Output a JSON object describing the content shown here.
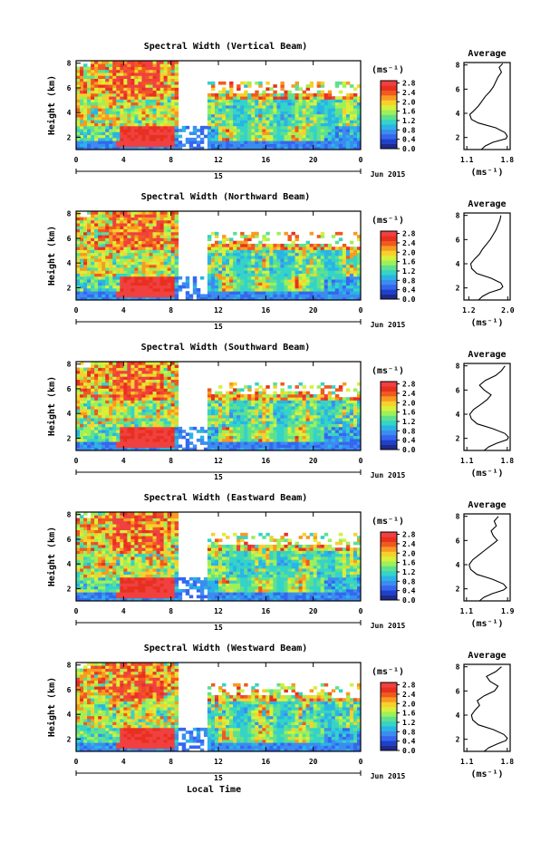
{
  "figure": {
    "xlabel": "Local Time",
    "date_label": "Jun 2015",
    "day_label": "15",
    "units_label": "(ms⁻¹)",
    "average_title": "Average",
    "ylabel": "Height (km)"
  },
  "colors": {
    "colormap": [
      "#1f2a8c",
      "#2040c8",
      "#3566f0",
      "#3c8cf0",
      "#2ab4e6",
      "#35d3c8",
      "#5fe08e",
      "#9cf05a",
      "#d8f03a",
      "#f8d02c",
      "#f89a22",
      "#f05a1e",
      "#e83020",
      "#f04040"
    ]
  },
  "chart_data": [
    {
      "type": "heatmap",
      "title": "Spectral Width (Vertical Beam)",
      "ylabel": "Height (km)",
      "xlabel": "",
      "x_ticks": [
        "0",
        "4",
        "8",
        "12",
        "16",
        "20",
        "0"
      ],
      "y_ticks": [
        "2",
        "4",
        "6",
        "8"
      ],
      "xlim": [
        0,
        24
      ],
      "ylim": [
        1,
        8.2
      ],
      "colorbar": {
        "ticks": [
          "0.0",
          "0.4",
          "0.8",
          "1.2",
          "1.6",
          "2.0",
          "2.4",
          "2.8"
        ],
        "range": [
          0.0,
          2.9
        ]
      },
      "average": {
        "title": "Average",
        "xlabel": "(ms⁻¹)",
        "x_ticks": [
          "1.1",
          "1.8"
        ],
        "xlim": [
          1.05,
          1.85
        ],
        "y_ticks": [
          "2",
          "4",
          "6",
          "8"
        ],
        "profile": [
          [
            1.35,
            1.0
          ],
          [
            1.42,
            1.3
          ],
          [
            1.55,
            1.6
          ],
          [
            1.78,
            1.9
          ],
          [
            1.8,
            2.1
          ],
          [
            1.76,
            2.4
          ],
          [
            1.6,
            2.8
          ],
          [
            1.3,
            3.2
          ],
          [
            1.18,
            3.5
          ],
          [
            1.15,
            3.9
          ],
          [
            1.22,
            4.2
          ],
          [
            1.3,
            4.6
          ],
          [
            1.36,
            5.0
          ],
          [
            1.42,
            5.4
          ],
          [
            1.5,
            5.8
          ],
          [
            1.56,
            6.2
          ],
          [
            1.6,
            6.6
          ],
          [
            1.64,
            7.0
          ],
          [
            1.7,
            7.4
          ],
          [
            1.66,
            7.8
          ],
          [
            1.72,
            8.1
          ]
        ]
      }
    },
    {
      "type": "heatmap",
      "title": "Spectral Width (Northward Beam)",
      "ylabel": "Height (km)",
      "xlabel": "",
      "x_ticks": [
        "0",
        "4",
        "8",
        "12",
        "16",
        "20",
        "0"
      ],
      "y_ticks": [
        "2",
        "4",
        "6",
        "8"
      ],
      "xlim": [
        0,
        24
      ],
      "ylim": [
        1,
        8.2
      ],
      "colorbar": {
        "ticks": [
          "0.0",
          "0.4",
          "0.8",
          "1.2",
          "1.6",
          "2.0",
          "2.4",
          "2.8"
        ],
        "range": [
          0.0,
          2.9
        ]
      },
      "average": {
        "title": "Average",
        "xlabel": "(ms⁻¹)",
        "x_ticks": [
          "1.2",
          "2.0"
        ],
        "xlim": [
          1.1,
          2.05
        ],
        "y_ticks": [
          "2",
          "4",
          "6",
          "8"
        ],
        "profile": [
          [
            1.4,
            1.0
          ],
          [
            1.48,
            1.3
          ],
          [
            1.62,
            1.6
          ],
          [
            1.85,
            1.9
          ],
          [
            1.9,
            2.1
          ],
          [
            1.86,
            2.4
          ],
          [
            1.66,
            2.8
          ],
          [
            1.36,
            3.2
          ],
          [
            1.26,
            3.6
          ],
          [
            1.24,
            4.0
          ],
          [
            1.32,
            4.4
          ],
          [
            1.42,
            4.8
          ],
          [
            1.48,
            5.2
          ],
          [
            1.56,
            5.6
          ],
          [
            1.64,
            6.0
          ],
          [
            1.7,
            6.4
          ],
          [
            1.76,
            6.8
          ],
          [
            1.8,
            7.2
          ],
          [
            1.84,
            7.6
          ],
          [
            1.86,
            8.0
          ]
        ]
      }
    },
    {
      "type": "heatmap",
      "title": "Spectral Width (Southward Beam)",
      "ylabel": "Height (km)",
      "xlabel": "",
      "x_ticks": [
        "0",
        "4",
        "8",
        "12",
        "16",
        "20",
        "0"
      ],
      "y_ticks": [
        "2",
        "4",
        "6",
        "8"
      ],
      "xlim": [
        0,
        24
      ],
      "ylim": [
        1,
        8.2
      ],
      "colorbar": {
        "ticks": [
          "0.0",
          "0.4",
          "0.8",
          "1.2",
          "1.6",
          "2.0",
          "2.4",
          "2.8"
        ],
        "range": [
          0.0,
          2.9
        ]
      },
      "average": {
        "title": "Average",
        "xlabel": "(ms⁻¹)",
        "x_ticks": [
          "1.1",
          "1.8"
        ],
        "xlim": [
          1.05,
          1.85
        ],
        "y_ticks": [
          "2",
          "4",
          "6",
          "8"
        ],
        "profile": [
          [
            1.4,
            1.0
          ],
          [
            1.48,
            1.3
          ],
          [
            1.62,
            1.6
          ],
          [
            1.8,
            1.9
          ],
          [
            1.82,
            2.1
          ],
          [
            1.76,
            2.4
          ],
          [
            1.55,
            2.8
          ],
          [
            1.28,
            3.2
          ],
          [
            1.18,
            3.6
          ],
          [
            1.15,
            4.0
          ],
          [
            1.22,
            4.4
          ],
          [
            1.34,
            4.8
          ],
          [
            1.45,
            5.2
          ],
          [
            1.52,
            5.6
          ],
          [
            1.4,
            6.0
          ],
          [
            1.32,
            6.4
          ],
          [
            1.42,
            6.8
          ],
          [
            1.6,
            7.2
          ],
          [
            1.7,
            7.6
          ],
          [
            1.76,
            8.0
          ]
        ]
      }
    },
    {
      "type": "heatmap",
      "title": "Spectral Width (Eastward Beam)",
      "ylabel": "Height (km)",
      "xlabel": "",
      "x_ticks": [
        "0",
        "4",
        "8",
        "12",
        "16",
        "20",
        "0"
      ],
      "y_ticks": [
        "2",
        "4",
        "6",
        "8"
      ],
      "xlim": [
        0,
        24
      ],
      "ylim": [
        1,
        8.2
      ],
      "colorbar": {
        "ticks": [
          "0.0",
          "0.4",
          "0.8",
          "1.2",
          "1.6",
          "2.0",
          "2.4",
          "2.8"
        ],
        "range": [
          0.0,
          2.9
        ]
      },
      "average": {
        "title": "Average",
        "xlabel": "(ms⁻¹)",
        "x_ticks": [
          "1.1",
          "1.9"
        ],
        "xlim": [
          1.05,
          1.95
        ],
        "y_ticks": [
          "2",
          "4",
          "6",
          "8"
        ],
        "profile": [
          [
            1.35,
            1.0
          ],
          [
            1.44,
            1.3
          ],
          [
            1.6,
            1.6
          ],
          [
            1.82,
            1.9
          ],
          [
            1.88,
            2.1
          ],
          [
            1.82,
            2.4
          ],
          [
            1.6,
            2.8
          ],
          [
            1.3,
            3.2
          ],
          [
            1.18,
            3.6
          ],
          [
            1.15,
            4.0
          ],
          [
            1.22,
            4.4
          ],
          [
            1.34,
            4.8
          ],
          [
            1.46,
            5.2
          ],
          [
            1.58,
            5.6
          ],
          [
            1.7,
            6.0
          ],
          [
            1.62,
            6.4
          ],
          [
            1.58,
            6.8
          ],
          [
            1.68,
            7.2
          ],
          [
            1.64,
            7.6
          ],
          [
            1.72,
            8.0
          ]
        ]
      }
    },
    {
      "type": "heatmap",
      "title": "Spectral Width (Westward Beam)",
      "ylabel": "Height (km)",
      "xlabel": "Local Time",
      "x_ticks": [
        "0",
        "4",
        "8",
        "12",
        "16",
        "20",
        "0"
      ],
      "y_ticks": [
        "2",
        "4",
        "6",
        "8"
      ],
      "xlim": [
        0,
        24
      ],
      "ylim": [
        1,
        8.2
      ],
      "colorbar": {
        "ticks": [
          "0.0",
          "0.4",
          "0.8",
          "1.2",
          "1.6",
          "2.0",
          "2.4",
          "2.8"
        ],
        "range": [
          0.0,
          2.9
        ]
      },
      "average": {
        "title": "Average",
        "xlabel": "(ms⁻¹)",
        "x_ticks": [
          "1.1",
          "1.8"
        ],
        "xlim": [
          1.05,
          1.85
        ],
        "y_ticks": [
          "2",
          "4",
          "6",
          "8"
        ],
        "profile": [
          [
            1.4,
            1.0
          ],
          [
            1.48,
            1.3
          ],
          [
            1.62,
            1.6
          ],
          [
            1.78,
            1.9
          ],
          [
            1.8,
            2.1
          ],
          [
            1.74,
            2.4
          ],
          [
            1.56,
            2.8
          ],
          [
            1.3,
            3.2
          ],
          [
            1.2,
            3.6
          ],
          [
            1.18,
            4.0
          ],
          [
            1.24,
            4.4
          ],
          [
            1.32,
            4.8
          ],
          [
            1.28,
            5.2
          ],
          [
            1.4,
            5.6
          ],
          [
            1.58,
            6.0
          ],
          [
            1.64,
            6.4
          ],
          [
            1.5,
            6.8
          ],
          [
            1.44,
            7.2
          ],
          [
            1.6,
            7.6
          ],
          [
            1.7,
            8.0
          ]
        ]
      }
    }
  ]
}
